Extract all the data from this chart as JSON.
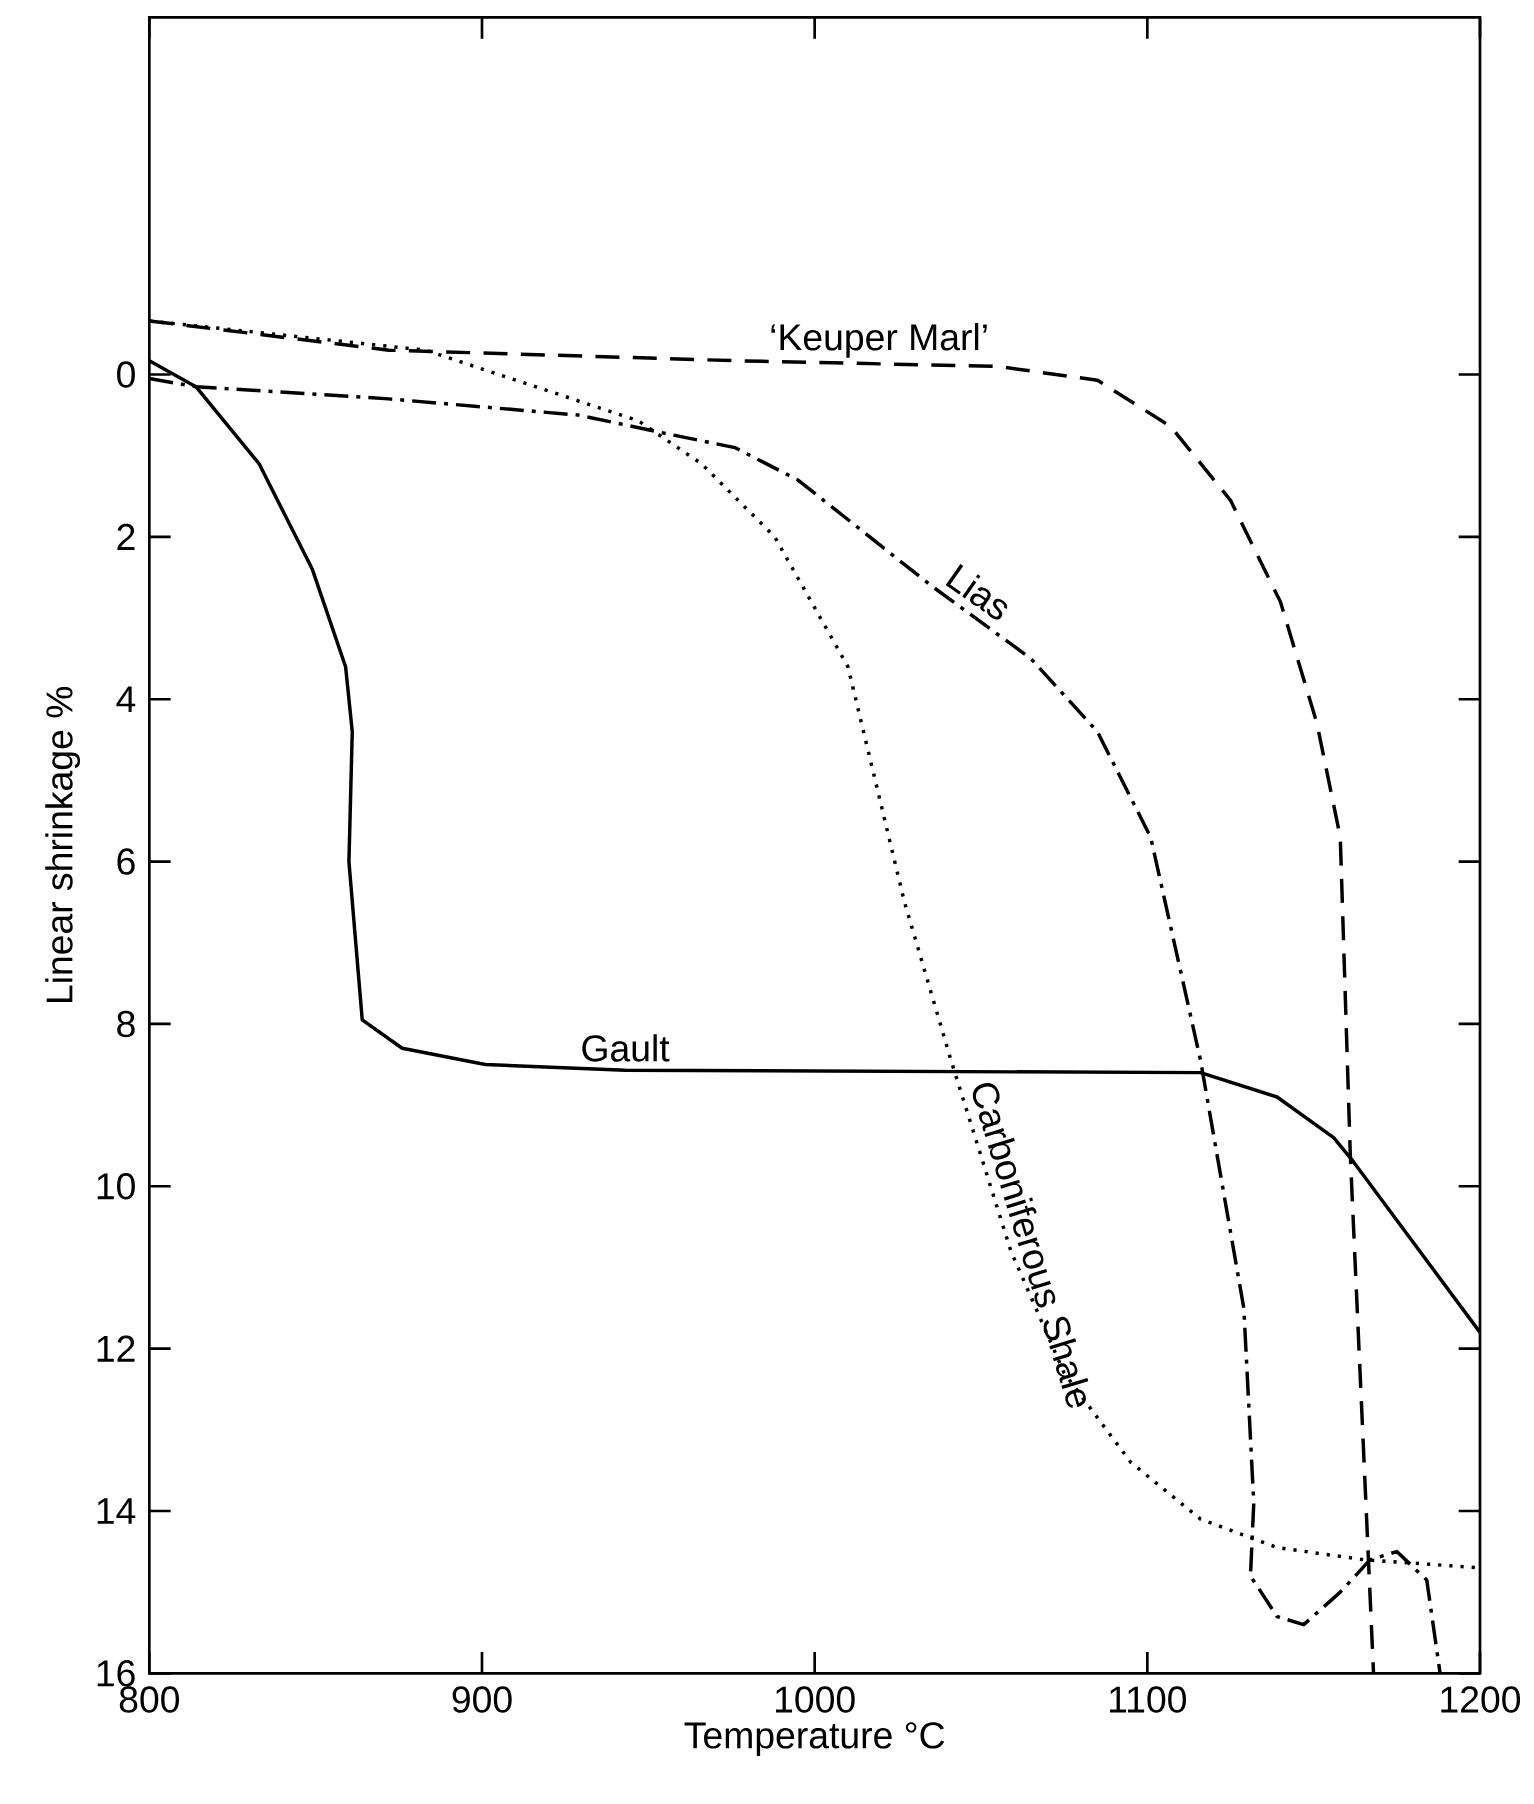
{
  "chart_data": {
    "type": "line",
    "xlabel": "Temperature °C",
    "ylabel": "Linear shrinkage %",
    "xlim": [
      800,
      1200
    ],
    "xticks": [
      800,
      900,
      1000,
      1100,
      1200
    ],
    "ylim": [
      16,
      -4.4
    ],
    "yticks": [
      0,
      2,
      4,
      6,
      8,
      10,
      12,
      14,
      16
    ],
    "legend": false,
    "grid": false,
    "series": [
      {
        "name": "‘Keuper Marl’",
        "color": "#000000",
        "line_style": "dashed",
        "x": [
          800,
          872,
          976,
          1055,
          1085,
          1107,
          1125,
          1140,
          1151,
          1158,
          1161,
          1168
        ],
        "values": [
          -0.66,
          -0.3,
          -0.17,
          -0.1,
          0.07,
          0.64,
          1.55,
          2.8,
          4.3,
          5.7,
          9.6,
          16
        ]
      },
      {
        "name": "Lias",
        "color": "#000000",
        "line_style": "dashdot",
        "x": [
          800,
          814,
          872,
          929,
          958,
          976,
          995,
          1035,
          1065,
          1085,
          1101,
          1116,
          1129,
          1132,
          1131,
          1139,
          1147,
          1158,
          1167,
          1175,
          1184,
          1188
        ],
        "values": [
          0.05,
          0.15,
          0.3,
          0.5,
          0.75,
          0.9,
          1.3,
          2.6,
          3.5,
          4.4,
          5.7,
          8.45,
          11.5,
          13.9,
          14.8,
          15.3,
          15.4,
          15.0,
          14.6,
          14.5,
          14.85,
          16
        ]
      },
      {
        "name": "Carboniferous Shale",
        "color": "#000000",
        "line_style": "dotted",
        "x": [
          800,
          883,
          947,
          966,
          988,
          1010,
          1027,
          1041,
          1059,
          1075,
          1095,
          1116,
          1139,
          1165,
          1200
        ],
        "values": [
          -0.66,
          -0.3,
          0.57,
          1.1,
          2.0,
          3.6,
          6.5,
          8.45,
          10.8,
          12.3,
          13.4,
          14.1,
          14.45,
          14.6,
          14.7
        ]
      },
      {
        "name": "Gault",
        "color": "#000000",
        "line_style": "solid",
        "x": [
          800,
          814,
          833,
          849,
          859,
          861,
          860,
          864,
          876,
          901,
          943,
          1116,
          1139,
          1156,
          1162,
          1200
        ],
        "values": [
          -0.17,
          0.15,
          1.1,
          2.4,
          3.6,
          4.4,
          6.0,
          7.95,
          8.3,
          8.5,
          8.57,
          8.6,
          8.9,
          9.4,
          9.7,
          11.8
        ]
      }
    ]
  }
}
